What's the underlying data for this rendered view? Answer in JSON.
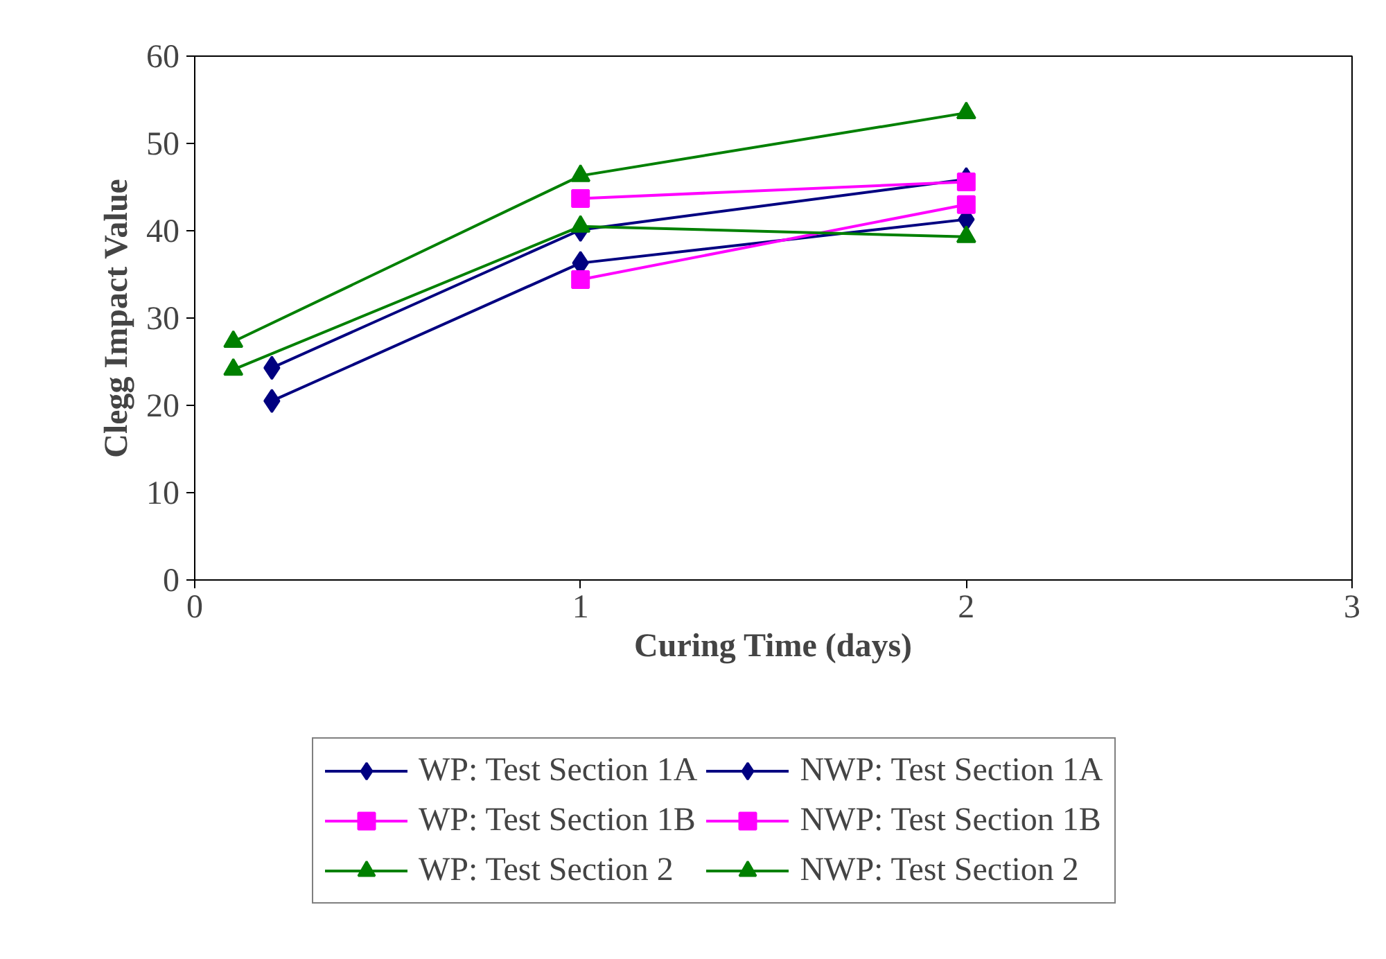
{
  "chart_data": {
    "type": "line",
    "xlabel": "Curing Time (days)",
    "ylabel": "Clegg Impact Value",
    "xlim": [
      0,
      3
    ],
    "xticks": [
      0,
      1,
      2,
      3
    ],
    "ylim": [
      0,
      60
    ],
    "yticks": [
      0,
      10,
      20,
      30,
      40,
      50,
      60
    ],
    "grid": false,
    "legend": "bottom",
    "series": [
      {
        "name": "WP: Test Section 1A",
        "color": "#000080",
        "marker": "diamond",
        "x": [
          0.2,
          1,
          2
        ],
        "values": [
          20.5,
          36.3,
          41.3
        ]
      },
      {
        "name": "NWP: Test Section 1A",
        "color": "#000080",
        "marker": "diamond",
        "x": [
          0.2,
          1,
          2
        ],
        "values": [
          24.3,
          40.1,
          45.9
        ]
      },
      {
        "name": "WP: Test Section 1B",
        "color": "#ff00ff",
        "marker": "square",
        "x": [
          1,
          2
        ],
        "values": [
          43.7,
          45.6
        ]
      },
      {
        "name": "NWP: Test Section 1B",
        "color": "#ff00ff",
        "marker": "square",
        "x": [
          1,
          2
        ],
        "values": [
          34.4,
          43.0
        ]
      },
      {
        "name": "WP: Test Section 2",
        "color": "#008000",
        "marker": "triangle",
        "x": [
          0.1,
          1,
          2
        ],
        "values": [
          24.1,
          40.5,
          39.3
        ]
      },
      {
        "name": "NWP: Test Section 2",
        "color": "#008000",
        "marker": "triangle",
        "x": [
          0.1,
          1,
          2
        ],
        "values": [
          27.3,
          46.3,
          53.5
        ]
      }
    ]
  }
}
